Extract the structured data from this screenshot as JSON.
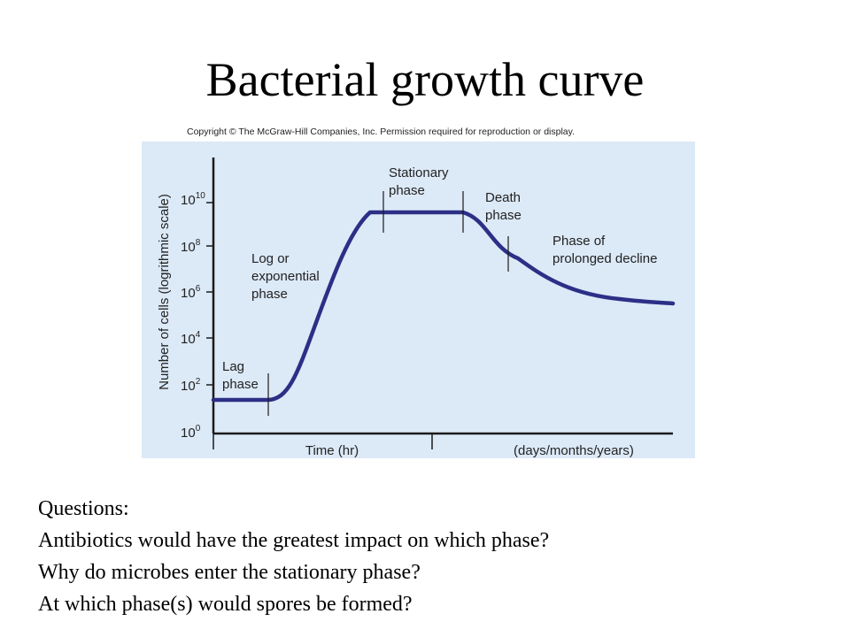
{
  "slide": {
    "title": "Bacterial growth curve",
    "copyright": "Copyright © The McGraw-Hill Companies, Inc. Permission required for reproduction or display."
  },
  "diagram": {
    "y_axis_label": "Number of cells (logrithmic scale)",
    "y_ticks": [
      {
        "base": "10",
        "exp": "0"
      },
      {
        "base": "10",
        "exp": "2"
      },
      {
        "base": "10",
        "exp": "4"
      },
      {
        "base": "10",
        "exp": "6"
      },
      {
        "base": "10",
        "exp": "8"
      },
      {
        "base": "10",
        "exp": "10"
      }
    ],
    "x_axis_label_time": "Time (hr)",
    "x_axis_label_long": "(days/months/years)",
    "phases": {
      "lag": [
        "Lag",
        "phase"
      ],
      "log": [
        "Log or",
        "exponential",
        "phase"
      ],
      "stationary": [
        "Stationary",
        "phase"
      ],
      "death": [
        "Death",
        "phase"
      ],
      "decline": [
        "Phase of",
        "prolonged decline"
      ]
    },
    "colors": {
      "panel": "#dce9f7",
      "curve": "#2c2f86",
      "axis": "#1a1a1a"
    }
  },
  "questions": {
    "heading": "Questions:",
    "items": [
      "Antibiotics would have the greatest impact on which phase?",
      "Why do microbes enter the stationary phase?",
      "At which phase(s) would spores be formed?"
    ]
  }
}
